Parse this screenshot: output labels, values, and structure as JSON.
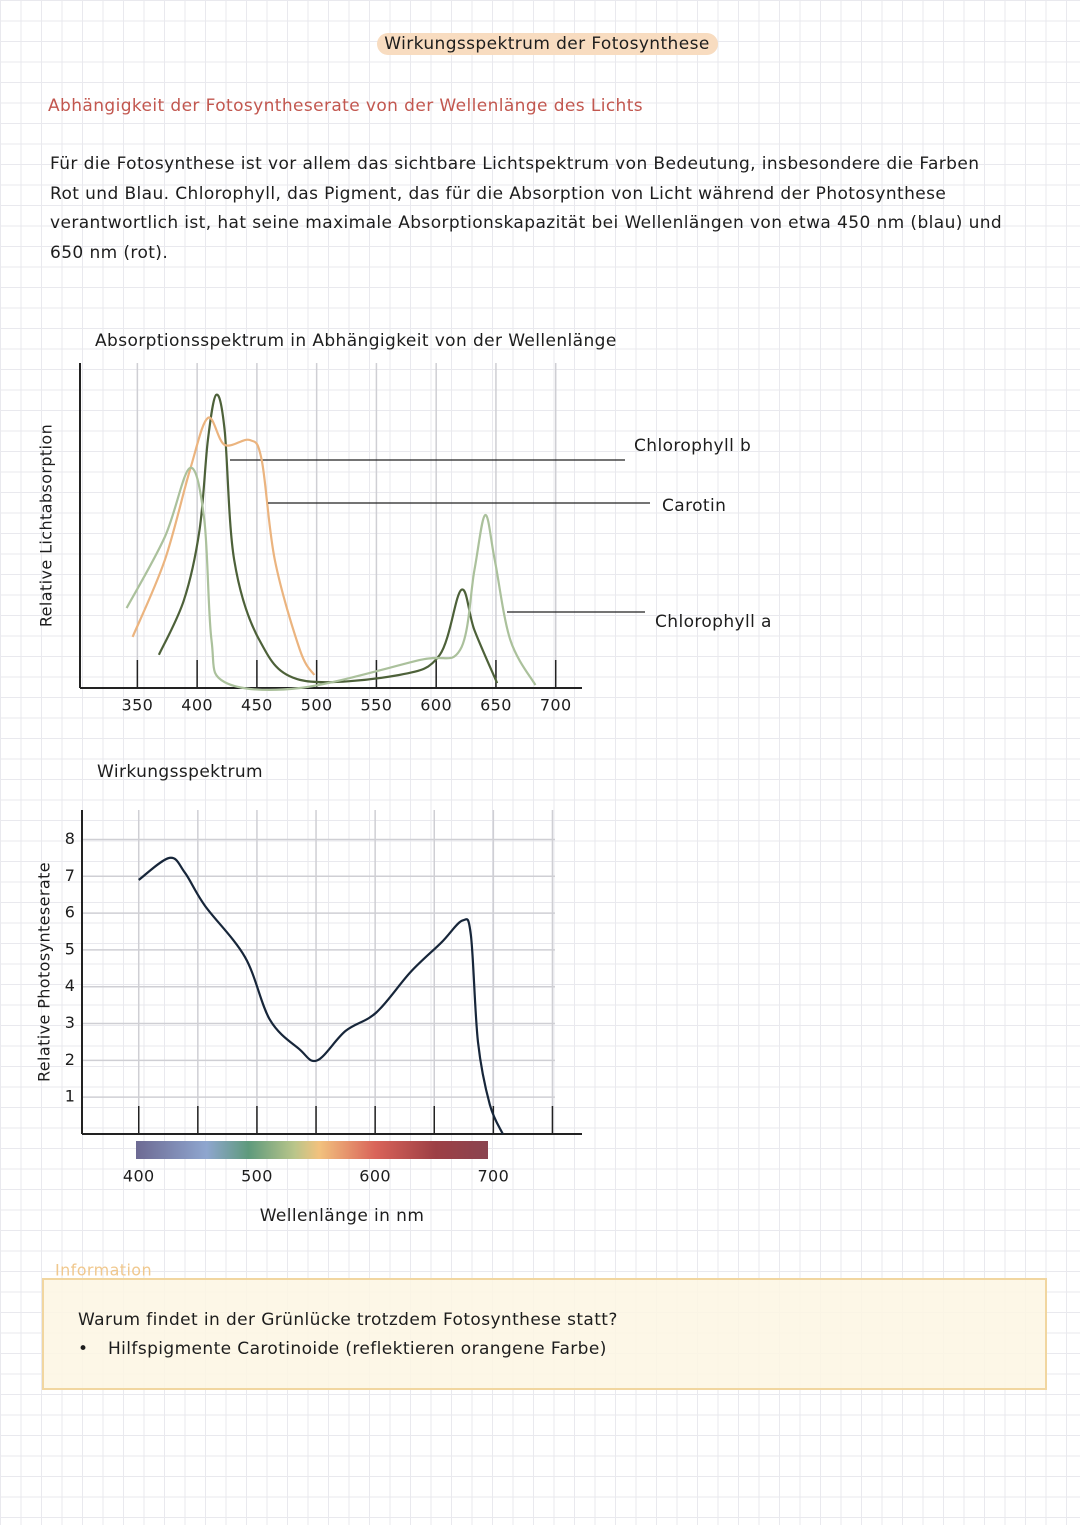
{
  "header": {
    "title": "Wirkungsspektrum der Fotosynthese"
  },
  "subtitle": "Abhängigkeit der Fotosyntheserate von der Wellenlänge des Lichts",
  "paragraph": {
    "lines": [
      "Für die Fotosynthese ist vor allem das sichtbare Lichtspektrum von Bedeutung, insbesondere die Farben",
      "Rot und Blau. Chlorophyll, das Pigment, das für die Absorption von Licht während der Photosynthese",
      "verantwortlich ist, hat seine maximale Absorptionskapazität bei Wellenlängen von etwa 450 nm (blau) und",
      "650 nm (rot)."
    ]
  },
  "chart_data": [
    {
      "type": "line",
      "title": "Absorptionsspektrum in Abhängigkeit von der Wellenlänge",
      "y_label": "Relative Lichtabsorption",
      "xlim": [
        302,
        722
      ],
      "ylim": [
        0,
        100
      ],
      "xticks": [
        350,
        400,
        450,
        500,
        550,
        600,
        650,
        700
      ],
      "grid": true,
      "series": [
        {
          "name": "Chlorophyll b",
          "color": "#4d6139",
          "x": [
            368,
            389,
            402,
            409,
            416,
            423,
            431,
            452,
            486,
            569,
            603,
            621,
            632,
            651
          ],
          "values": [
            10.2,
            27.1,
            48.6,
            76.3,
            90.2,
            79.4,
            39.4,
            14.8,
            2.5,
            4,
            10.2,
            30.2,
            17.8,
            1.5
          ]
        },
        {
          "name": "Carotin",
          "color": "#ebb47f",
          "x": [
            346,
            373,
            394,
            409,
            423,
            444,
            454,
            465,
            486,
            498
          ],
          "values": [
            15.7,
            39.4,
            67.1,
            83.1,
            74.8,
            76.3,
            70.2,
            39.4,
            11.7,
            4
          ]
        },
        {
          "name": "Chlorophyll a",
          "color": "#abc19c",
          "x": [
            341,
            373,
            394,
            406,
            412,
            423,
            486,
            586,
            620,
            632,
            641,
            649,
            662,
            683
          ],
          "values": [
            24.6,
            46.5,
            67.7,
            51.7,
            14.8,
            1.8,
            0,
            8.6,
            11.7,
            36.3,
            53.2,
            39.4,
            14.8,
            0.9
          ]
        }
      ]
    },
    {
      "type": "line",
      "title": "Wirkungsspektrum",
      "y_label": "Relative Photosynteserate",
      "x_label": "Wellenlänge in nm",
      "xlim": [
        352,
        775
      ],
      "ylim": [
        0,
        8.8
      ],
      "xticks": [
        400,
        500,
        600,
        700
      ],
      "xminor": [
        450,
        550,
        650,
        750
      ],
      "yticks": [
        1,
        2,
        3,
        4,
        5,
        6,
        7,
        8
      ],
      "grid": true,
      "series": [
        {
          "color": "#17263a",
          "x": [
            400,
            426,
            439,
            456,
            490,
            511,
            536,
            551,
            575,
            601,
            630,
            656,
            674,
            681,
            687,
            697,
            708
          ],
          "values": [
            6.9,
            7.5,
            7.1,
            6.2,
            4.8,
            3.1,
            2.3,
            2.0,
            2.8,
            3.3,
            4.4,
            5.2,
            5.8,
            5.4,
            2.5,
            0.8,
            0
          ]
        }
      ]
    }
  ],
  "info": {
    "label": "Information",
    "question": "Warum findet in der Grünlücke trotzdem Fotosynthese statt?",
    "bullet": "Hilfspigmente Carotinoide (reflektieren orangene Farbe)"
  }
}
